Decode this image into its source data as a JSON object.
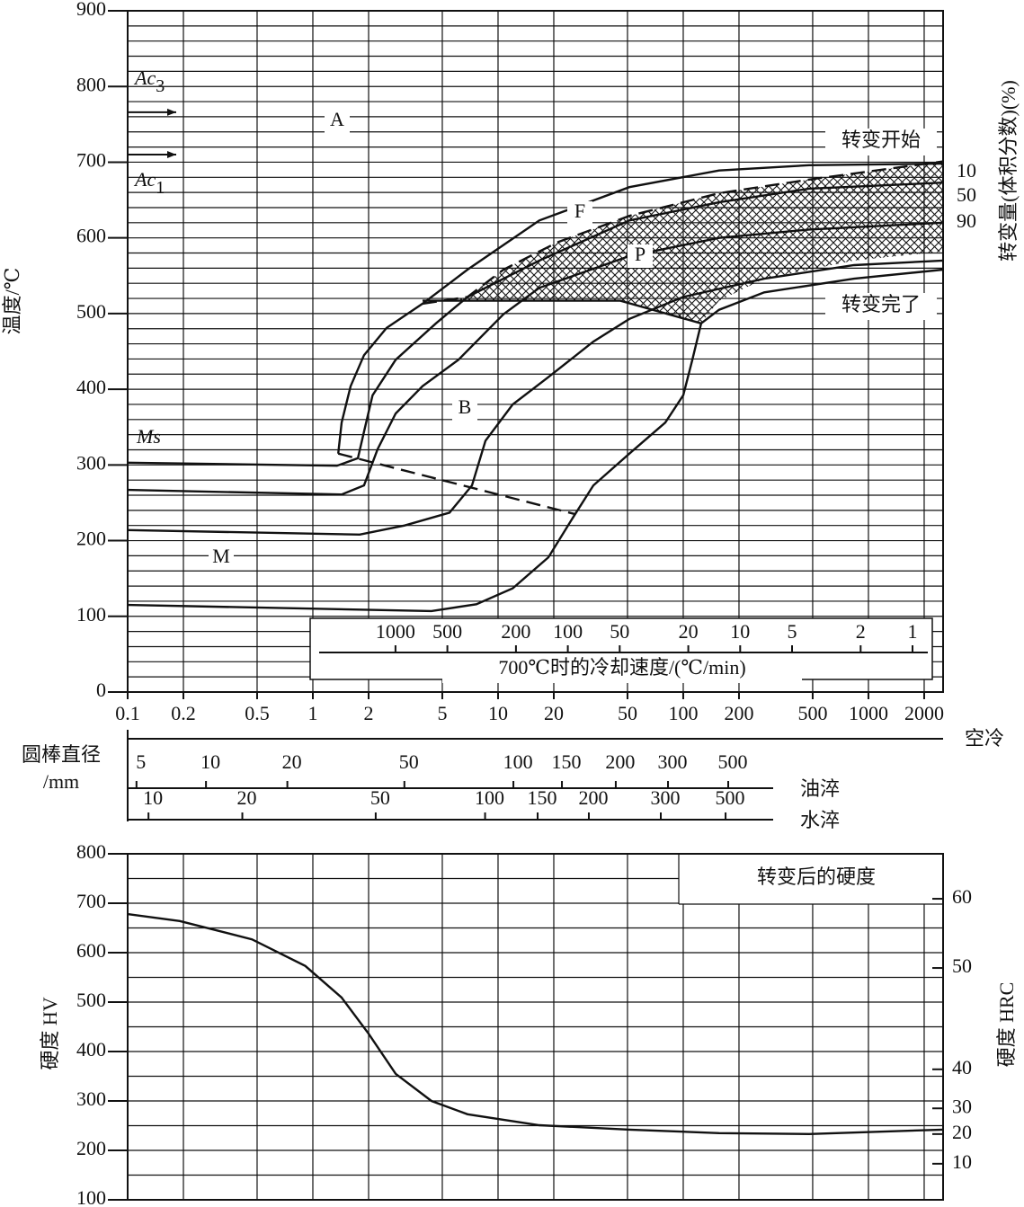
{
  "chart_data": [
    {
      "type": "line",
      "y_label": "温度/℃",
      "ylim": [
        0,
        900
      ],
      "yticks": [
        0,
        100,
        200,
        300,
        400,
        500,
        600,
        700,
        800,
        900
      ],
      "grid_step": 20,
      "xlim": [
        0.1,
        2530
      ],
      "log_x": true,
      "xticks": [
        0.1,
        0.2,
        0.5,
        1,
        2,
        5,
        10,
        20,
        50,
        100,
        200,
        500,
        1000,
        2000
      ],
      "curves": [
        {
          "dash": false,
          "x": [
            1.37,
            1.43,
            1.6,
            1.89,
            2.5,
            3.91,
            6.84,
            16.7,
            51.2,
            156,
            479,
            2530
          ],
          "y": [
            315,
            356,
            404,
            445,
            481,
            513,
            558,
            623,
            667,
            689,
            696,
            698
          ]
        },
        {
          "dash": false,
          "x": [
            0.1,
            1.35,
            1.75,
            1.89,
            2.1,
            2.8,
            4.62,
            6.84,
            16.7,
            51.2,
            156,
            479,
            2530
          ],
          "y": [
            303,
            299,
            309,
            344,
            392,
            439,
            487,
            522,
            570,
            623,
            647,
            665,
            673
          ]
        },
        {
          "dash": false,
          "x": [
            0.1,
            1.43,
            1.89,
            2.24,
            2.8,
            3.91,
            6.11,
            10.7,
            16.7,
            51.2,
            156,
            479,
            2530
          ],
          "y": [
            267,
            261,
            273,
            321,
            368,
            404,
            439,
            499,
            534,
            576,
            600,
            611,
            620
          ]
        },
        {
          "dash": false,
          "x": [
            0.1,
            1.79,
            3.13,
            5.47,
            7.23,
            8.55,
            12.0,
            18.7,
            32.7,
            51.2,
            100,
            274,
            836,
            2530
          ],
          "y": [
            214,
            208,
            220,
            237,
            273,
            332,
            380,
            416,
            463,
            493,
            522,
            546,
            564,
            570
          ]
        },
        {
          "dash": false,
          "x": [
            0.1,
            4.37,
            7.64,
            12.0,
            18.7,
            24.7,
            32.7,
            51.2,
            80,
            100,
            112,
            125,
            156,
            274,
            836,
            2530
          ],
          "y": [
            115,
            107,
            116,
            137,
            178,
            226,
            273,
            315,
            356,
            392,
            439,
            487,
            505,
            528,
            546,
            558
          ]
        },
        {
          "dash": false,
          "x": [
            3.91,
            45.7,
            125
          ],
          "y": [
            517,
            517,
            487
          ]
        },
        {
          "dash": true,
          "x": [
            1.37,
            26.1
          ],
          "y": [
            315,
            235
          ]
        },
        {
          "dash": true,
          "x": [
            3.91,
            6.84,
            10.7,
            20.9,
            51.2,
            156,
            479,
            2530
          ],
          "y": [
            513,
            522,
            558,
            594,
            629,
            659,
            677,
            701
          ]
        }
      ],
      "hatched": {
        "x": [
          5.47,
          45.7,
          125,
          156,
          274,
          836,
          2530,
          2530,
          479,
          156,
          51.2,
          20.9,
          10.7,
          6.84,
          5.47
        ],
        "y": [
          517,
          517,
          487,
          517,
          546,
          570,
          582,
          701,
          677,
          659,
          629,
          594,
          558,
          522,
          517
        ]
      },
      "phase_labels": [
        "A",
        "F",
        "P",
        "B",
        "M"
      ],
      "critical": [
        {
          "text": "Ac",
          "sub": "3",
          "value": 766
        },
        {
          "text": "Ac",
          "sub": "1",
          "value": 710
        }
      ],
      "ms_label": "Ms",
      "start_label": "转变开始",
      "finish_label": "转变完了",
      "amounts": [
        10,
        50,
        90
      ],
      "amount_title": "转变量(体积分数)(%)",
      "rate_title": "700℃时的冷却速度/(℃/min)",
      "rate_ticks": [
        1000,
        500,
        200,
        100,
        50,
        20,
        10,
        5,
        2,
        1
      ],
      "diameter_label": [
        "圆棒直径",
        "/mm"
      ],
      "air_label": "空冷",
      "oil": {
        "label": "油淬",
        "d": [
          5,
          10,
          20,
          50,
          100,
          150,
          200,
          300,
          500
        ],
        "x": [
          0.118,
          0.28,
          0.77,
          3.3,
          12.8,
          23.4,
          45.7,
          87.5,
          185
        ]
      },
      "water": {
        "label": "水淬",
        "d": [
          10,
          20,
          50,
          100,
          150,
          200,
          300,
          500
        ],
        "x": [
          0.137,
          0.44,
          2.31,
          9.0,
          17.3,
          32.7,
          80,
          179
        ]
      }
    },
    {
      "type": "line",
      "y_label": "硬度 HV",
      "y2_label": "硬度 HRC",
      "box_title": "转变后的硬度",
      "ylim": [
        100,
        800
      ],
      "yticks": [
        100,
        200,
        300,
        400,
        500,
        600,
        700,
        800
      ],
      "grid_step": 50,
      "x": [
        0.1,
        0.191,
        0.469,
        0.91,
        1.43,
        2.0,
        2.8,
        4.37,
        6.84,
        16.7,
        51.2,
        156,
        479,
        2530
      ],
      "values": [
        678,
        664,
        627,
        573,
        509,
        436,
        355,
        300,
        273,
        251,
        242,
        235,
        233,
        242
      ],
      "hrc_ticks": [
        60,
        50,
        40,
        30,
        20,
        10
      ],
      "hrc_at": [
        709,
        569,
        364,
        285,
        233,
        173
      ]
    }
  ]
}
